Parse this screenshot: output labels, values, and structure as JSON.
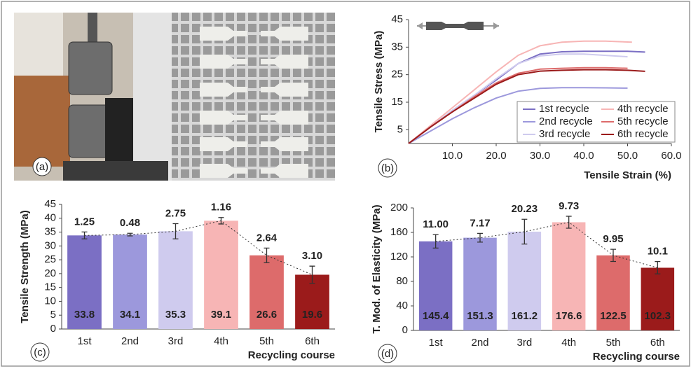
{
  "photo": {
    "panel_label": "(a)"
  },
  "chart_data": [
    {
      "type": "line",
      "panel_label": "(b)",
      "ylabel": "Tensile Stress (MPa)",
      "xlabel": "Tensile Strain (%)",
      "xlim": [
        0,
        60
      ],
      "xticks": [
        {
          "value": 10,
          "label": "10.0"
        },
        {
          "value": 20,
          "label": "20.0"
        },
        {
          "value": 30,
          "label": "30.0"
        },
        {
          "value": 40,
          "label": "40.0"
        },
        {
          "value": 50,
          "label": "50.0"
        },
        {
          "value": 60,
          "label": "60.0"
        }
      ],
      "ylim": [
        0,
        45
      ],
      "yticks": [
        5,
        15,
        25,
        35,
        45
      ],
      "grid": false,
      "legend": "lower right",
      "series": [
        {
          "name": "1st recycle",
          "color": "#7b6fc4",
          "x": [
            0,
            5,
            10,
            15,
            20,
            25,
            30,
            35,
            40,
            45,
            50,
            54
          ],
          "values": [
            0,
            6,
            12,
            17.5,
            23,
            29,
            32.5,
            33.3,
            33.5,
            33.5,
            33.5,
            33.2
          ]
        },
        {
          "name": "2nd recycle",
          "color": "#9c98dc",
          "x": [
            0,
            5,
            10,
            15,
            20,
            25,
            30,
            35,
            40,
            45,
            50
          ],
          "values": [
            0,
            4.5,
            9,
            13,
            16.5,
            19,
            20,
            20.3,
            20.3,
            20.2,
            20.1
          ]
        },
        {
          "name": "3rd recycle",
          "color": "#cfcbee",
          "x": [
            0,
            5,
            10,
            15,
            20,
            25,
            30,
            35,
            40,
            45,
            50
          ],
          "values": [
            0,
            6,
            12,
            17.5,
            23.5,
            29,
            31.8,
            32.5,
            32.5,
            32,
            31.5
          ]
        },
        {
          "name": "4th recycle",
          "color": "#f7b5b5",
          "x": [
            0,
            5,
            10,
            15,
            20,
            25,
            30,
            35,
            40,
            45,
            51
          ],
          "values": [
            0,
            6.5,
            13,
            19.5,
            26,
            32,
            35.5,
            36.8,
            37.2,
            37.2,
            36.8
          ]
        },
        {
          "name": "5th recycle",
          "color": "#dd6b6b",
          "x": [
            0,
            5,
            10,
            15,
            20,
            25,
            30,
            35,
            40,
            45,
            50
          ],
          "values": [
            0,
            6,
            11.5,
            17,
            22,
            25.5,
            27,
            27.3,
            27.5,
            27.5,
            27.3
          ]
        },
        {
          "name": "6th recycle",
          "color": "#9b1b1b",
          "x": [
            0,
            5,
            10,
            15,
            20,
            25,
            30,
            35,
            40,
            45,
            50,
            54
          ],
          "values": [
            0,
            6,
            11.5,
            16.5,
            21.5,
            25,
            26.3,
            26.6,
            26.8,
            26.8,
            26.6,
            26.2
          ]
        }
      ]
    },
    {
      "type": "bar",
      "panel_label": "(c)",
      "ylabel": "Tensile Strength (MPa)",
      "xlabel": "Recycling course",
      "categories": [
        "1st",
        "2nd",
        "3rd",
        "4th",
        "5th",
        "6th"
      ],
      "values": [
        33.8,
        34.1,
        35.3,
        39.1,
        26.6,
        19.6
      ],
      "errors": [
        1.25,
        0.48,
        2.75,
        1.16,
        2.64,
        3.1
      ],
      "error_labels": [
        "1.25",
        "0.48",
        "2.75",
        "1.16",
        "2.64",
        "3.10"
      ],
      "colors": [
        "#7b6fc4",
        "#9c98dc",
        "#cfcbee",
        "#f7b5b5",
        "#dd6b6b",
        "#9b1b1b"
      ],
      "ylim": [
        0,
        45
      ],
      "yticks": [
        0,
        5,
        10,
        15,
        20,
        25,
        30,
        35,
        40,
        45
      ],
      "grid": false
    },
    {
      "type": "bar",
      "panel_label": "(d)",
      "ylabel": "T. Mod. of Elasticity (MPa)",
      "xlabel": "Recycling course",
      "categories": [
        "1st",
        "2nd",
        "3rd",
        "4th",
        "5th",
        "6th"
      ],
      "values": [
        145.4,
        151.3,
        161.2,
        176.6,
        122.5,
        102.3
      ],
      "errors": [
        11,
        7.17,
        20.23,
        9.73,
        9.95,
        10.1
      ],
      "error_labels": [
        "11.00",
        "7.17",
        "20.23",
        "9.73",
        "9.95",
        "10.1"
      ],
      "colors": [
        "#7b6fc4",
        "#9c98dc",
        "#cfcbee",
        "#f7b5b5",
        "#dd6b6b",
        "#9b1b1b"
      ],
      "ylim": [
        0,
        200
      ],
      "yticks": [
        0,
        40,
        80,
        120,
        160,
        200
      ],
      "grid": false
    }
  ]
}
